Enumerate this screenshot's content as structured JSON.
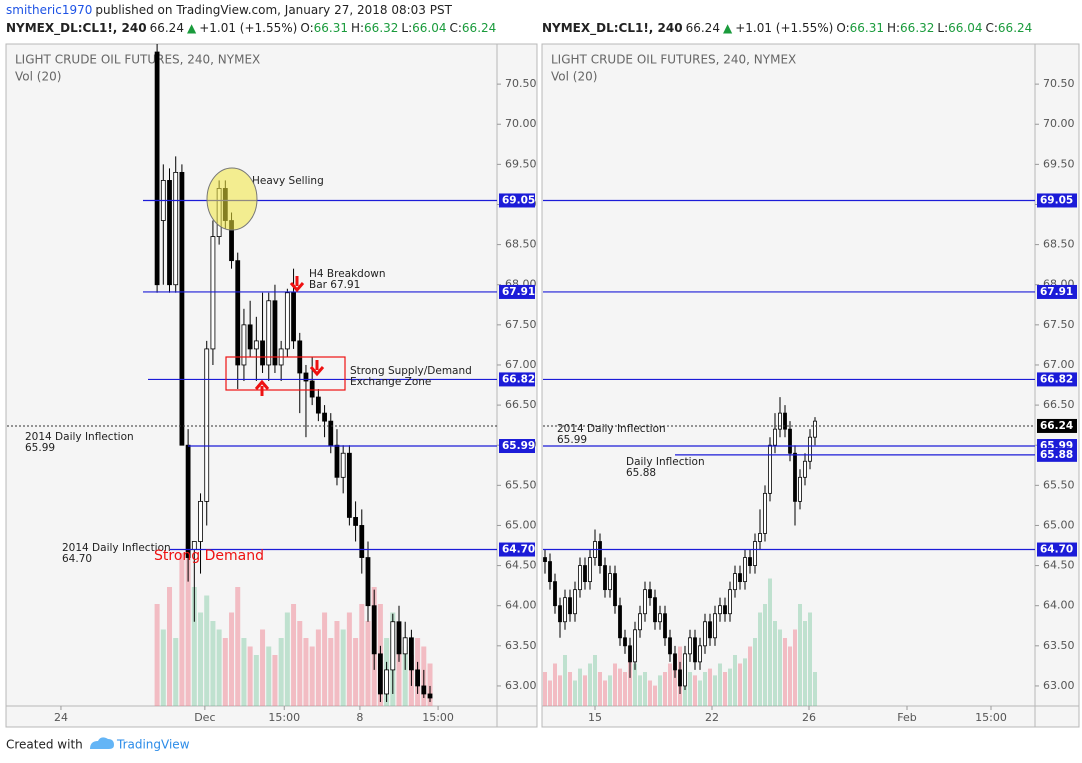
{
  "header": {
    "user": "smitheric1970",
    "published": "published on TradingView.com, January 27, 2018 08:03 PST"
  },
  "footer": {
    "created": "Created with",
    "brand": "TradingView"
  },
  "chart_data": [
    {
      "type": "candlestick",
      "title": "LIGHT CRUDE OIL FUTURES, 240, NYMEX",
      "subtitle": "Vol (20)",
      "quote": {
        "symbol": "NYMEX_DL:CL1!, 240",
        "last": 66.24,
        "change": "+1.01 (+1.55%)",
        "o_label": "O:",
        "o": 66.31,
        "h_label": "H:",
        "h": 66.32,
        "l_label": "L:",
        "l": 66.04,
        "c_label": "C:",
        "c": 66.24
      },
      "open": [
        70.9,
        68.8,
        69.3,
        68.0,
        69.4,
        66.0,
        64.7,
        64.8,
        65.3,
        67.2,
        68.6,
        69.2,
        68.8,
        68.3,
        67.0,
        67.5,
        67.2,
        67.3,
        67.0,
        67.8,
        67.0,
        67.2,
        67.9,
        67.3,
        66.9,
        66.8,
        66.6,
        66.4,
        66.3,
        66.0,
        65.6,
        65.9,
        65.1,
        65.0,
        64.6,
        64.0,
        63.4,
        62.9,
        63.2,
        63.8,
        63.4,
        63.6,
        63.2,
        63.0,
        62.9
      ],
      "high": [
        71.0,
        69.5,
        69.45,
        69.6,
        69.5,
        66.2,
        64.8,
        65.4,
        67.3,
        68.8,
        69.3,
        69.3,
        68.9,
        68.4,
        67.7,
        67.8,
        67.6,
        67.9,
        67.9,
        68.0,
        67.3,
        67.95,
        68.2,
        67.4,
        67.0,
        67.1,
        66.7,
        66.5,
        66.4,
        66.2,
        66.0,
        66.0,
        65.3,
        65.2,
        64.8,
        64.2,
        63.5,
        63.3,
        63.9,
        64.0,
        63.8,
        63.7,
        63.3,
        63.2,
        63.0
      ],
      "low": [
        67.9,
        68.0,
        67.9,
        67.9,
        66.0,
        64.3,
        63.8,
        64.4,
        65.0,
        67.0,
        68.5,
        68.7,
        68.2,
        66.7,
        66.8,
        67.1,
        66.8,
        66.9,
        66.8,
        66.9,
        66.8,
        67.1,
        67.2,
        66.4,
        66.1,
        66.5,
        66.3,
        66.1,
        65.9,
        65.5,
        65.4,
        65.0,
        64.8,
        64.4,
        63.8,
        63.2,
        62.8,
        62.8,
        62.9,
        63.3,
        63.2,
        63.0,
        62.9,
        62.85,
        62.8
      ],
      "close": [
        68.0,
        69.3,
        68.0,
        69.4,
        66.0,
        64.6,
        64.8,
        65.3,
        67.2,
        68.6,
        69.2,
        68.8,
        68.3,
        67.0,
        67.5,
        67.2,
        67.3,
        67.0,
        67.8,
        67.0,
        67.2,
        67.9,
        67.3,
        66.9,
        66.8,
        66.6,
        66.4,
        66.3,
        66.0,
        65.6,
        65.9,
        65.1,
        65.0,
        64.6,
        64.0,
        63.4,
        62.9,
        63.2,
        63.8,
        63.4,
        63.6,
        63.2,
        63.0,
        62.9,
        62.85
      ],
      "volume": [
        60,
        45,
        70,
        40,
        90,
        95,
        70,
        55,
        65,
        50,
        45,
        40,
        55,
        70,
        40,
        35,
        30,
        45,
        35,
        30,
        40,
        55,
        60,
        50,
        40,
        35,
        45,
        55,
        40,
        50,
        45,
        55,
        40,
        60,
        50,
        70,
        60,
        40,
        55,
        45,
        35,
        30,
        40,
        35,
        25
      ],
      "xlim": [
        -24.2,
        54.8
      ],
      "xticks": [
        {
          "value": -15.5,
          "label": "24"
        },
        {
          "value": 7.7,
          "label": "Dec"
        },
        {
          "value": 20.5,
          "label": "15:00"
        },
        {
          "value": 32.7,
          "label": "8"
        },
        {
          "value": 45.3,
          "label": "15:00"
        }
      ],
      "ylim": [
        62.75,
        71.0
      ],
      "yticks": [
        {
          "value": 63,
          "label": "63.00"
        },
        {
          "value": 63.5,
          "label": "63.50"
        },
        {
          "value": 64,
          "label": "64.00"
        },
        {
          "value": 64.5,
          "label": "64.50"
        },
        {
          "value": 65,
          "label": "65.00"
        },
        {
          "value": 65.5,
          "label": "65.50"
        },
        {
          "value": 66,
          "label": "66.00"
        },
        {
          "value": 66.5,
          "label": "66.50"
        },
        {
          "value": 67,
          "label": "67.00"
        },
        {
          "value": 67.5,
          "label": "67.50"
        },
        {
          "value": 68,
          "label": "68.00"
        },
        {
          "value": 68.5,
          "label": "68.50"
        },
        {
          "value": 69,
          "label": "69.00"
        },
        {
          "value": 69.5,
          "label": "69.50"
        },
        {
          "value": 70,
          "label": "70.00"
        },
        {
          "value": 70.5,
          "label": "70.50"
        }
      ],
      "levels": [
        {
          "value": 69.05,
          "label": "69.05"
        },
        {
          "value": 67.91,
          "label": "67.91"
        },
        {
          "value": 66.82,
          "label": "66.82"
        },
        {
          "value": 65.99,
          "label": "65.99"
        },
        {
          "value": 64.7,
          "label": "64.70"
        }
      ],
      "current": {
        "value": 66.24
      },
      "annotations": [
        "Heavy Selling",
        "H4 Breakdown",
        "Bar 67.91",
        "Strong Supply/Demand",
        "Exchange Zone",
        "2014 Daily Inflection",
        "65.99",
        "2014 Daily Inflection",
        "64.70",
        "Strong Demand"
      ]
    },
    {
      "type": "candlestick",
      "title": "LIGHT CRUDE OIL FUTURES, 240, NYMEX",
      "subtitle": "Vol (20)",
      "quote": {
        "symbol": "NYMEX_DL:CL1!, 240",
        "last": 66.24,
        "change": "+1.01 (+1.55%)",
        "o_label": "O:",
        "o": 66.31,
        "h_label": "H:",
        "h": 66.32,
        "l_label": "L:",
        "l": 66.04,
        "c_label": "C:",
        "c": 66.24
      },
      "open": [
        64.6,
        64.55,
        64.3,
        64.0,
        63.8,
        64.1,
        63.9,
        64.2,
        64.5,
        64.3,
        64.6,
        64.8,
        64.5,
        64.2,
        64.4,
        64.0,
        63.6,
        63.5,
        63.3,
        63.7,
        63.9,
        64.2,
        64.1,
        63.8,
        63.9,
        63.6,
        63.4,
        63.2,
        63.0,
        63.4,
        63.6,
        63.3,
        63.5,
        63.8,
        63.6,
        63.9,
        64.0,
        63.9,
        64.2,
        64.4,
        64.3,
        64.6,
        64.5,
        64.8,
        64.9,
        65.4,
        66.0,
        66.2,
        66.4,
        66.2,
        65.9,
        65.3,
        65.6,
        65.8,
        66.1
      ],
      "high": [
        64.7,
        64.65,
        64.4,
        64.1,
        64.2,
        64.2,
        64.3,
        64.6,
        64.6,
        64.7,
        64.95,
        64.9,
        64.6,
        64.5,
        64.5,
        64.1,
        63.7,
        63.6,
        63.8,
        64.0,
        64.3,
        64.3,
        64.2,
        64.0,
        64.0,
        63.7,
        63.5,
        63.3,
        63.5,
        63.7,
        63.7,
        63.6,
        63.9,
        63.9,
        64.0,
        64.1,
        64.1,
        64.3,
        64.5,
        64.5,
        64.7,
        64.7,
        64.9,
        65.2,
        65.5,
        66.1,
        66.4,
        66.6,
        66.5,
        66.3,
        66.0,
        65.7,
        65.9,
        66.2,
        66.35
      ],
      "low": [
        64.4,
        64.2,
        63.9,
        63.6,
        63.7,
        63.8,
        63.8,
        64.1,
        64.2,
        64.2,
        64.5,
        64.4,
        64.1,
        64.1,
        63.9,
        63.5,
        63.4,
        63.1,
        63.2,
        63.6,
        63.8,
        64.0,
        63.7,
        63.7,
        63.5,
        63.3,
        63.1,
        62.9,
        62.95,
        63.3,
        63.2,
        63.2,
        63.4,
        63.5,
        63.5,
        63.8,
        63.8,
        63.8,
        64.1,
        64.2,
        64.2,
        64.4,
        64.4,
        64.7,
        64.8,
        65.3,
        65.9,
        66.1,
        66.1,
        65.8,
        65.0,
        65.2,
        65.5,
        65.7,
        66.0
      ],
      "close": [
        64.55,
        64.3,
        64.0,
        63.8,
        64.1,
        63.9,
        64.2,
        64.5,
        64.3,
        64.6,
        64.8,
        64.5,
        64.2,
        64.4,
        64.0,
        63.6,
        63.5,
        63.3,
        63.7,
        63.9,
        64.2,
        64.1,
        63.8,
        63.9,
        63.6,
        63.4,
        63.2,
        63.0,
        63.4,
        63.6,
        63.3,
        63.5,
        63.8,
        63.6,
        63.9,
        64.0,
        63.9,
        64.2,
        64.4,
        64.3,
        64.6,
        64.5,
        64.8,
        64.9,
        65.4,
        66.0,
        66.2,
        66.4,
        66.2,
        65.9,
        65.3,
        65.6,
        65.8,
        66.1,
        66.3
      ],
      "volume": [
        20,
        15,
        25,
        18,
        30,
        20,
        15,
        22,
        18,
        25,
        30,
        20,
        15,
        18,
        25,
        22,
        20,
        30,
        25,
        18,
        20,
        15,
        12,
        18,
        20,
        25,
        30,
        35,
        25,
        20,
        18,
        15,
        20,
        22,
        18,
        25,
        20,
        22,
        30,
        25,
        28,
        35,
        40,
        55,
        60,
        75,
        50,
        45,
        40,
        35,
        45,
        60,
        50,
        55,
        20
      ],
      "xlim": [
        -0.4,
        98
      ],
      "xticks": [
        {
          "value": 10,
          "label": "15"
        },
        {
          "value": 33.4,
          "label": "22"
        },
        {
          "value": 52.8,
          "label": "26"
        },
        {
          "value": 72.4,
          "label": "Feb"
        },
        {
          "value": 89.2,
          "label": "15:00"
        }
      ],
      "ylim": [
        62.75,
        71.0
      ],
      "yticks": [
        {
          "value": 63,
          "label": "63.00"
        },
        {
          "value": 63.5,
          "label": "63.50"
        },
        {
          "value": 64,
          "label": "64.00"
        },
        {
          "value": 64.5,
          "label": "64.50"
        },
        {
          "value": 65,
          "label": "65.00"
        },
        {
          "value": 65.5,
          "label": "65.50"
        },
        {
          "value": 66,
          "label": "66.00"
        },
        {
          "value": 66.5,
          "label": "66.50"
        },
        {
          "value": 67,
          "label": "67.00"
        },
        {
          "value": 67.5,
          "label": "67.50"
        },
        {
          "value": 68,
          "label": "68.00"
        },
        {
          "value": 68.5,
          "label": "68.50"
        },
        {
          "value": 69,
          "label": "69.00"
        },
        {
          "value": 69.5,
          "label": "69.50"
        },
        {
          "value": 70,
          "label": "70.00"
        },
        {
          "value": 70.5,
          "label": "70.50"
        }
      ],
      "levels": [
        {
          "value": 69.05,
          "label": "69.05"
        },
        {
          "value": 67.91,
          "label": "67.91"
        },
        {
          "value": 66.82,
          "label": "66.82"
        },
        {
          "value": 65.99,
          "label": "65.99"
        },
        {
          "value": 65.88,
          "label": "65.88"
        },
        {
          "value": 64.7,
          "label": "64.70"
        }
      ],
      "current": {
        "value": 66.24,
        "label": "66.24"
      },
      "annotations": [
        "2014 Daily Inflection",
        "65.99",
        "Daily Inflection",
        "65.88"
      ]
    }
  ]
}
